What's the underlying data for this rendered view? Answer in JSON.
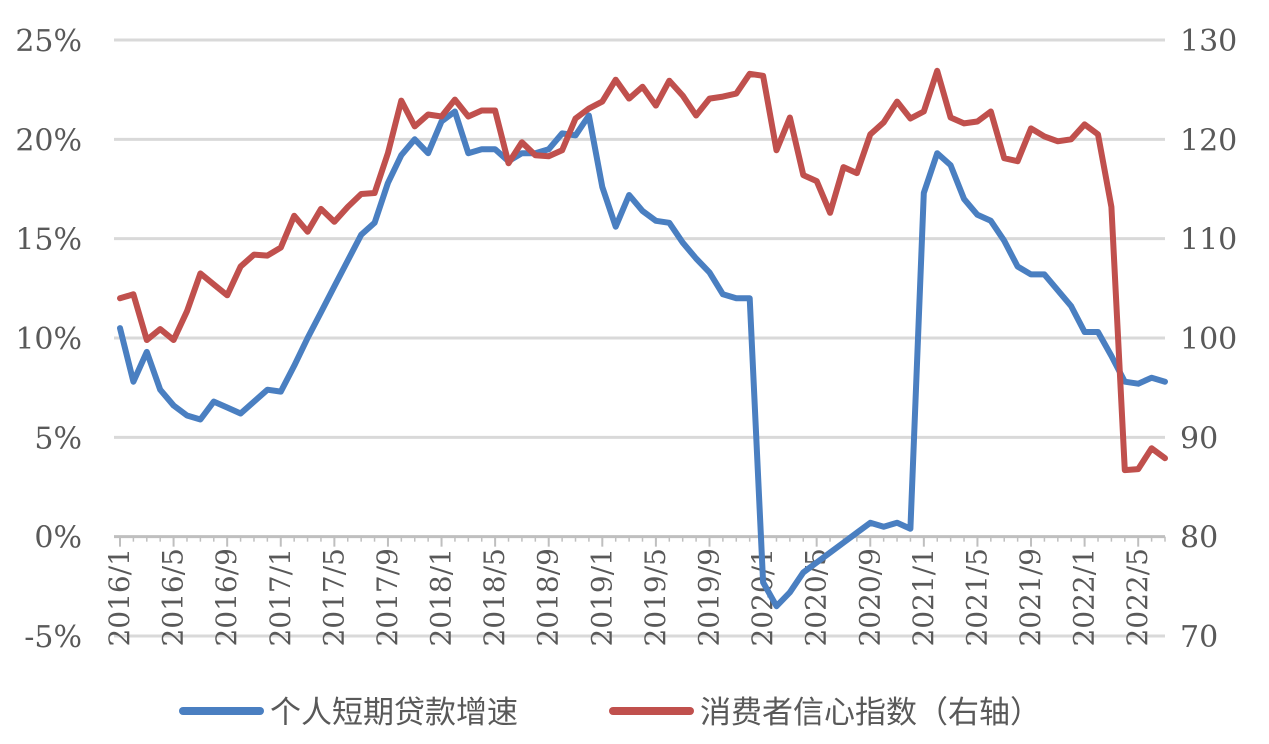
{
  "chart_data": {
    "type": "line",
    "title": "",
    "left_axis": {
      "ylim": [
        -5,
        25
      ],
      "ticks": [
        -5,
        0,
        5,
        10,
        15,
        20,
        25
      ],
      "tick_suffix": "%"
    },
    "right_axis": {
      "ylim": [
        70,
        130
      ],
      "ticks": [
        70,
        80,
        90,
        100,
        110,
        120,
        130
      ]
    },
    "grid": true,
    "legend_position": "bottom",
    "x_tick_labels": [
      "2016/1",
      "2016/5",
      "2016/9",
      "2017/1",
      "2017/5",
      "2017/9",
      "2018/1",
      "2018/5",
      "2018/9",
      "2019/1",
      "2019/5",
      "2019/9",
      "2020/1",
      "2020/5",
      "2020/9",
      "2021/1",
      "2021/5",
      "2021/9",
      "2022/1",
      "2022/5"
    ],
    "x_start": "2016/1",
    "x_months": 79,
    "series": [
      {
        "name": "个人短期贷款增速",
        "axis": "left",
        "color": "#4a7fc1",
        "values": [
          10.5,
          7.8,
          9.3,
          7.4,
          6.6,
          6.1,
          5.9,
          6.8,
          6.5,
          6.2,
          6.8,
          7.4,
          7.3,
          8.6,
          10.0,
          11.3,
          12.6,
          13.9,
          15.2,
          15.8,
          17.8,
          19.2,
          20.0,
          19.3,
          20.9,
          21.4,
          19.3,
          19.5,
          19.5,
          18.9,
          19.3,
          19.3,
          19.5,
          20.3,
          20.2,
          21.2,
          17.6,
          15.6,
          17.2,
          16.4,
          15.9,
          15.8,
          14.8,
          14.0,
          13.3,
          12.2,
          12.0,
          12.0,
          -2.3,
          -3.5,
          -2.8,
          -1.8,
          -1.3,
          -0.8,
          -0.3,
          0.2,
          0.7,
          0.5,
          0.7,
          0.4,
          17.3,
          19.3,
          18.7,
          17.0,
          16.2,
          15.9,
          14.9,
          13.6,
          13.2,
          13.2,
          12.4,
          11.6,
          10.3,
          10.3,
          9.1,
          7.8,
          7.7,
          8.0,
          7.8
        ]
      },
      {
        "name": "消费者信心指数（右轴）",
        "axis": "right",
        "color": "#c0504d",
        "values": [
          104.0,
          104.4,
          99.8,
          100.9,
          99.8,
          102.7,
          106.5,
          105.4,
          104.3,
          107.2,
          108.4,
          108.3,
          109.1,
          112.3,
          110.7,
          113.0,
          111.7,
          113.2,
          114.5,
          114.6,
          118.6,
          123.9,
          121.3,
          122.5,
          122.3,
          124.0,
          122.3,
          122.9,
          122.9,
          117.6,
          119.7,
          118.4,
          118.3,
          118.9,
          122.1,
          123.1,
          123.8,
          126.0,
          124.1,
          125.3,
          123.4,
          125.9,
          124.4,
          122.4,
          124.1,
          124.3,
          124.6,
          126.6,
          126.4,
          118.9,
          122.2,
          116.4,
          115.8,
          112.6,
          117.2,
          116.6,
          120.5,
          121.7,
          123.8,
          122.1,
          122.8,
          126.9,
          122.2,
          121.6,
          121.8,
          122.8,
          118.1,
          117.8,
          121.1,
          120.3,
          119.8,
          120.0,
          121.5,
          120.5,
          113.2,
          86.7,
          86.8,
          88.9,
          87.9
        ]
      }
    ]
  }
}
